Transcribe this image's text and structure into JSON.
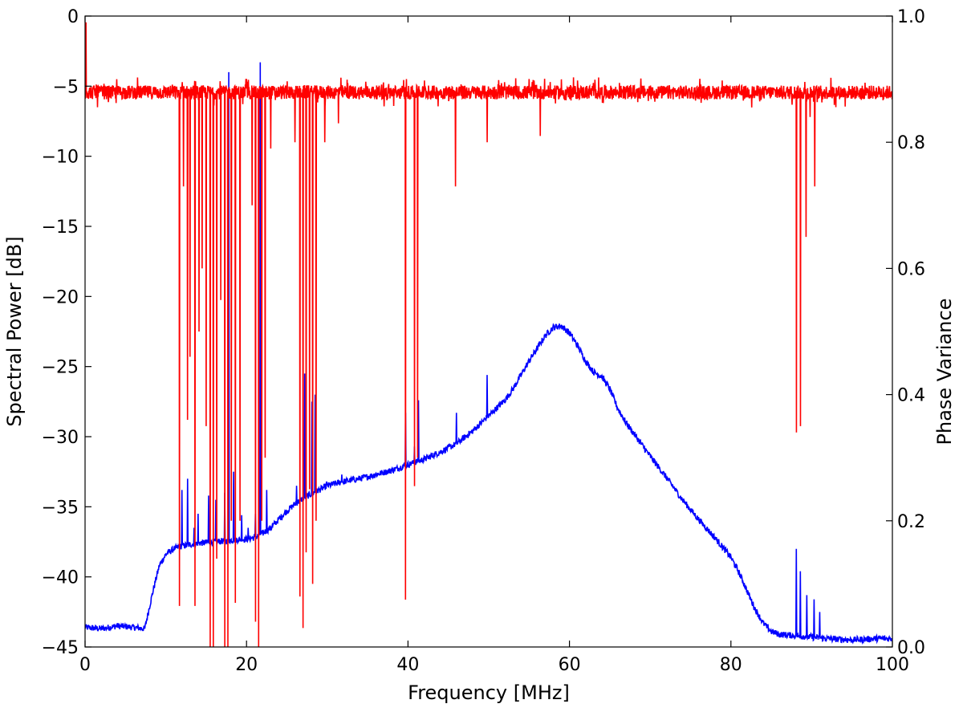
{
  "chart_data": {
    "type": "line",
    "title": "",
    "xlabel": "Frequency [MHz]",
    "ylabel": "Spectral Power [dB]",
    "y2label": "Phase Variance",
    "xlim": [
      0,
      100
    ],
    "ylim": [
      -45,
      0
    ],
    "y2lim": [
      0.0,
      1.0
    ],
    "x_ticks": [
      "0",
      "20",
      "40",
      "60",
      "80",
      "100"
    ],
    "y_ticks": [
      "0",
      "−5",
      "−10",
      "−15",
      "−20",
      "−25",
      "−30",
      "−35",
      "−40",
      "−45"
    ],
    "y2_ticks": [
      "0.0",
      "0.2",
      "0.4",
      "0.6",
      "0.8",
      "1.0"
    ],
    "grid": false,
    "series": [
      {
        "axis": "left",
        "color": "#0000ff",
        "baseline": [
          [
            0,
            -43.6
          ],
          [
            2,
            -43.7
          ],
          [
            4,
            -43.5
          ],
          [
            6,
            -43.6
          ],
          [
            7.4,
            -43.7
          ],
          [
            7.8,
            -42.6
          ],
          [
            8.5,
            -40.8
          ],
          [
            9.2,
            -39.2
          ],
          [
            10,
            -38.4
          ],
          [
            11,
            -38.0
          ],
          [
            12,
            -37.8
          ],
          [
            14,
            -37.6
          ],
          [
            16,
            -37.5
          ],
          [
            18,
            -37.4
          ],
          [
            20,
            -37.3
          ],
          [
            21,
            -37.2
          ],
          [
            22,
            -36.9
          ],
          [
            23,
            -36.5
          ],
          [
            24,
            -35.9
          ],
          [
            25,
            -35.3
          ],
          [
            26,
            -34.8
          ],
          [
            27,
            -34.4
          ],
          [
            28,
            -34.1
          ],
          [
            29,
            -33.8
          ],
          [
            30,
            -33.5
          ],
          [
            32,
            -33.2
          ],
          [
            34,
            -33.0
          ],
          [
            36,
            -32.7
          ],
          [
            38,
            -32.4
          ],
          [
            40,
            -32.0
          ],
          [
            42,
            -31.6
          ],
          [
            44,
            -31.1
          ],
          [
            46,
            -30.5
          ],
          [
            48,
            -29.6
          ],
          [
            50,
            -28.5
          ],
          [
            52,
            -27.4
          ],
          [
            53,
            -26.6
          ],
          [
            54,
            -25.6
          ],
          [
            55,
            -24.6
          ],
          [
            56,
            -23.7
          ],
          [
            57,
            -22.8
          ],
          [
            58,
            -22.2
          ],
          [
            59,
            -22.1
          ],
          [
            60,
            -22.6
          ],
          [
            61,
            -23.5
          ],
          [
            62,
            -24.6
          ],
          [
            63,
            -25.4
          ],
          [
            64,
            -25.7
          ],
          [
            65,
            -26.6
          ],
          [
            66,
            -28.0
          ],
          [
            67,
            -29.0
          ],
          [
            68,
            -29.8
          ],
          [
            70,
            -31.4
          ],
          [
            72,
            -32.9
          ],
          [
            74,
            -34.5
          ],
          [
            76,
            -35.9
          ],
          [
            78,
            -37.2
          ],
          [
            79,
            -37.9
          ],
          [
            80,
            -38.6
          ],
          [
            81,
            -39.7
          ],
          [
            82,
            -41.0
          ],
          [
            83,
            -42.3
          ],
          [
            84,
            -43.3
          ],
          [
            85,
            -43.9
          ],
          [
            86,
            -44.1
          ],
          [
            88,
            -44.2
          ],
          [
            90,
            -44.3
          ],
          [
            92,
            -44.4
          ],
          [
            95,
            -44.5
          ],
          [
            98,
            -44.4
          ],
          [
            100,
            -44.4
          ]
        ],
        "spikes": [
          [
            12.0,
            -33.8
          ],
          [
            12.7,
            -33.0
          ],
          [
            13.5,
            -36.5
          ],
          [
            14.0,
            -35.5
          ],
          [
            15.3,
            -34.2
          ],
          [
            16.2,
            -34.5
          ],
          [
            17.3,
            -34.0
          ],
          [
            17.8,
            -4.0
          ],
          [
            18.4,
            -32.5
          ],
          [
            19.4,
            -35.6
          ],
          [
            20.2,
            -36.5
          ],
          [
            21.1,
            -35.5
          ],
          [
            21.7,
            -3.3
          ],
          [
            22.5,
            -33.8
          ],
          [
            26.2,
            -33.5
          ],
          [
            27.2,
            -25.5
          ],
          [
            28.1,
            -27.5
          ],
          [
            28.5,
            -27.0
          ],
          [
            29.9,
            -33.2
          ],
          [
            31.8,
            -32.7
          ],
          [
            39.7,
            -28.3
          ],
          [
            40.8,
            -30.7
          ],
          [
            41.3,
            -27.4
          ],
          [
            46.0,
            -28.3
          ],
          [
            49.8,
            -25.6
          ],
          [
            88.1,
            -38.0
          ],
          [
            88.6,
            -39.6
          ],
          [
            89.4,
            -41.3
          ],
          [
            90.3,
            -41.6
          ],
          [
            91.0,
            -42.5
          ]
        ]
      },
      {
        "axis": "right",
        "color": "#ff0000",
        "baseline_mean": 0.879,
        "noise_amplitude": 0.011,
        "dips": [
          [
            0.1,
            0.99
          ],
          [
            11.7,
            0.065
          ],
          [
            12.2,
            0.73
          ],
          [
            12.7,
            0.36
          ],
          [
            13.0,
            0.46
          ],
          [
            13.6,
            0.065
          ],
          [
            14.1,
            0.5
          ],
          [
            14.5,
            0.6
          ],
          [
            15.0,
            0.35
          ],
          [
            15.5,
            0.0
          ],
          [
            15.9,
            0.0
          ],
          [
            16.3,
            0.14
          ],
          [
            16.8,
            0.55
          ],
          [
            17.3,
            0.0
          ],
          [
            17.7,
            0.0
          ],
          [
            18.1,
            0.2
          ],
          [
            18.6,
            0.07
          ],
          [
            19.2,
            0.2
          ],
          [
            20.7,
            0.7
          ],
          [
            21.1,
            0.04
          ],
          [
            21.5,
            0.0
          ],
          [
            21.9,
            0.2
          ],
          [
            22.3,
            0.3
          ],
          [
            23.0,
            0.79
          ],
          [
            26.0,
            0.8
          ],
          [
            26.6,
            0.08
          ],
          [
            27.0,
            0.03
          ],
          [
            27.4,
            0.15
          ],
          [
            27.8,
            0.25
          ],
          [
            28.2,
            0.1
          ],
          [
            28.6,
            0.2
          ],
          [
            29.7,
            0.8
          ],
          [
            31.4,
            0.83
          ],
          [
            39.7,
            0.075
          ],
          [
            40.8,
            0.255
          ],
          [
            41.2,
            0.3
          ],
          [
            45.9,
            0.73
          ],
          [
            49.8,
            0.8
          ],
          [
            56.4,
            0.81
          ],
          [
            88.1,
            0.34
          ],
          [
            88.6,
            0.35
          ],
          [
            89.3,
            0.65
          ],
          [
            89.8,
            0.84
          ],
          [
            90.4,
            0.73
          ]
        ]
      }
    ]
  }
}
